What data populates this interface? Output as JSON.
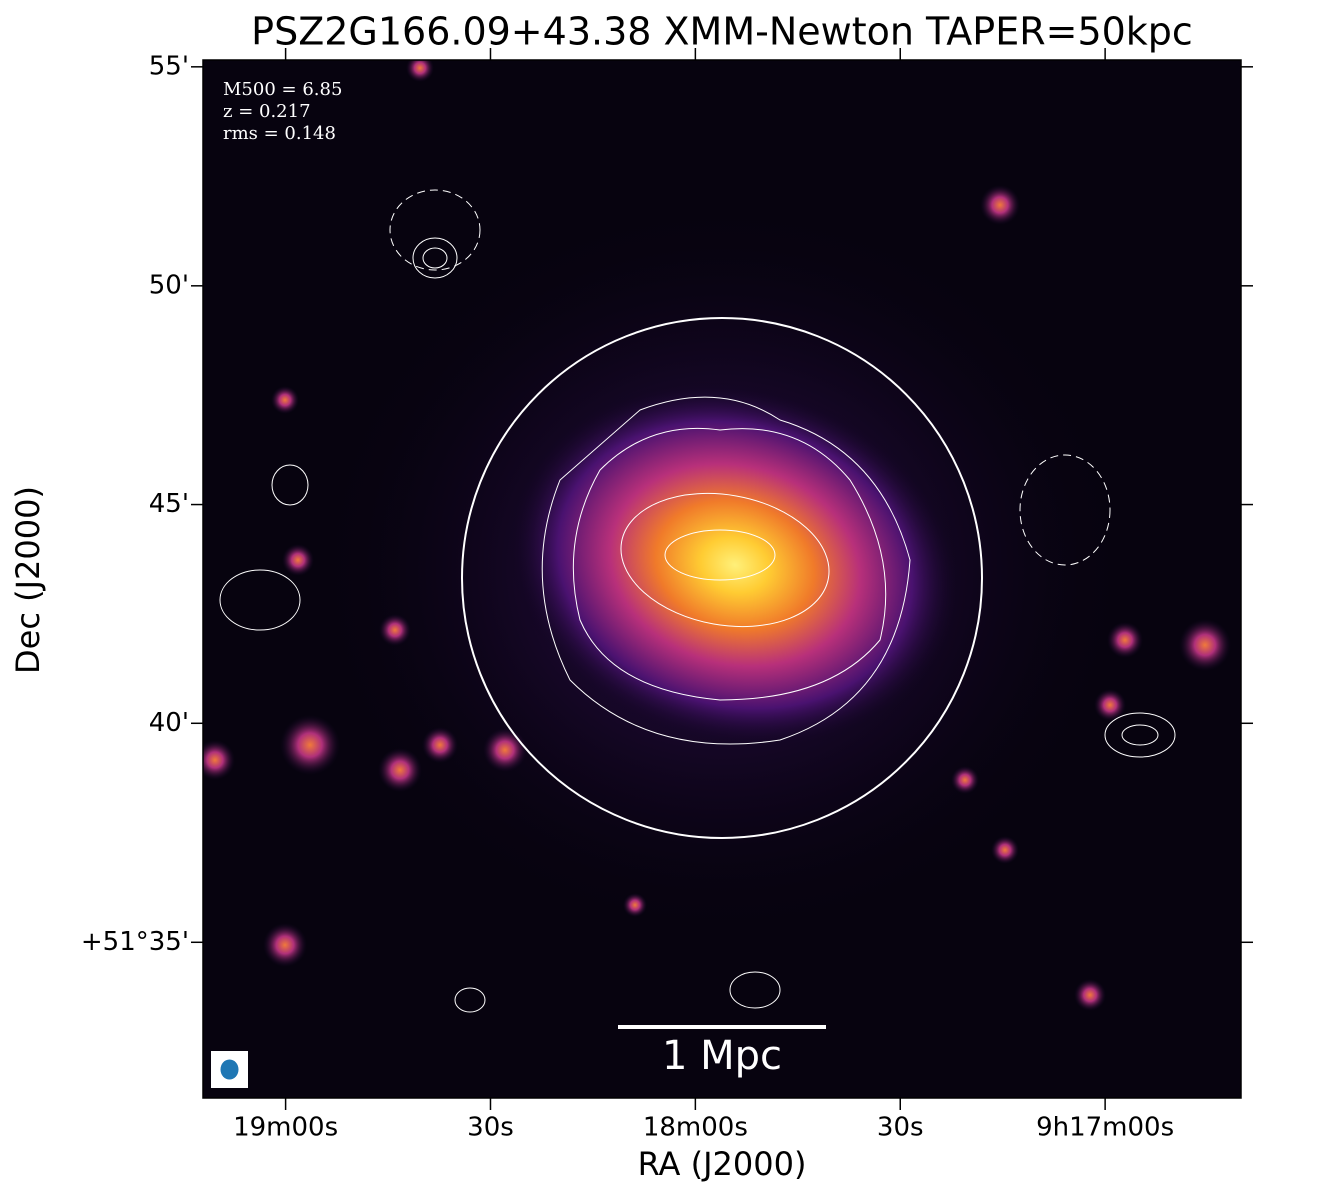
{
  "chart_data": {
    "type": "image",
    "title": "PSZ2G166.09+43.38 XMM-Newton TAPER=50kpc",
    "x_label": "RA (J2000)",
    "y_label": "Dec (J2000)",
    "annotations": [
      "M500 = 6.85",
      "z = 0.217",
      "rms = 0.148"
    ],
    "scale_bar_label": "1 Mpc",
    "xlim": [
      139.8004,
      139.1671
    ],
    "ylim": [
      51.524,
      51.9193
    ],
    "xticks": [
      {
        "value": 139.75,
        "label": "19m00s"
      },
      {
        "value": 139.625,
        "label": "30s"
      },
      {
        "value": 139.5,
        "label": "18m00s"
      },
      {
        "value": 139.375,
        "label": "30s"
      },
      {
        "value": 139.25,
        "label": "9h17m00s"
      }
    ],
    "yticks": [
      {
        "value": 51.5833,
        "label": "+51°35'"
      },
      {
        "value": 51.6667,
        "label": "40'"
      },
      {
        "value": 51.75,
        "label": "45'"
      },
      {
        "value": 51.8333,
        "label": "50'"
      },
      {
        "value": 51.9167,
        "label": "55'"
      }
    ]
  }
}
